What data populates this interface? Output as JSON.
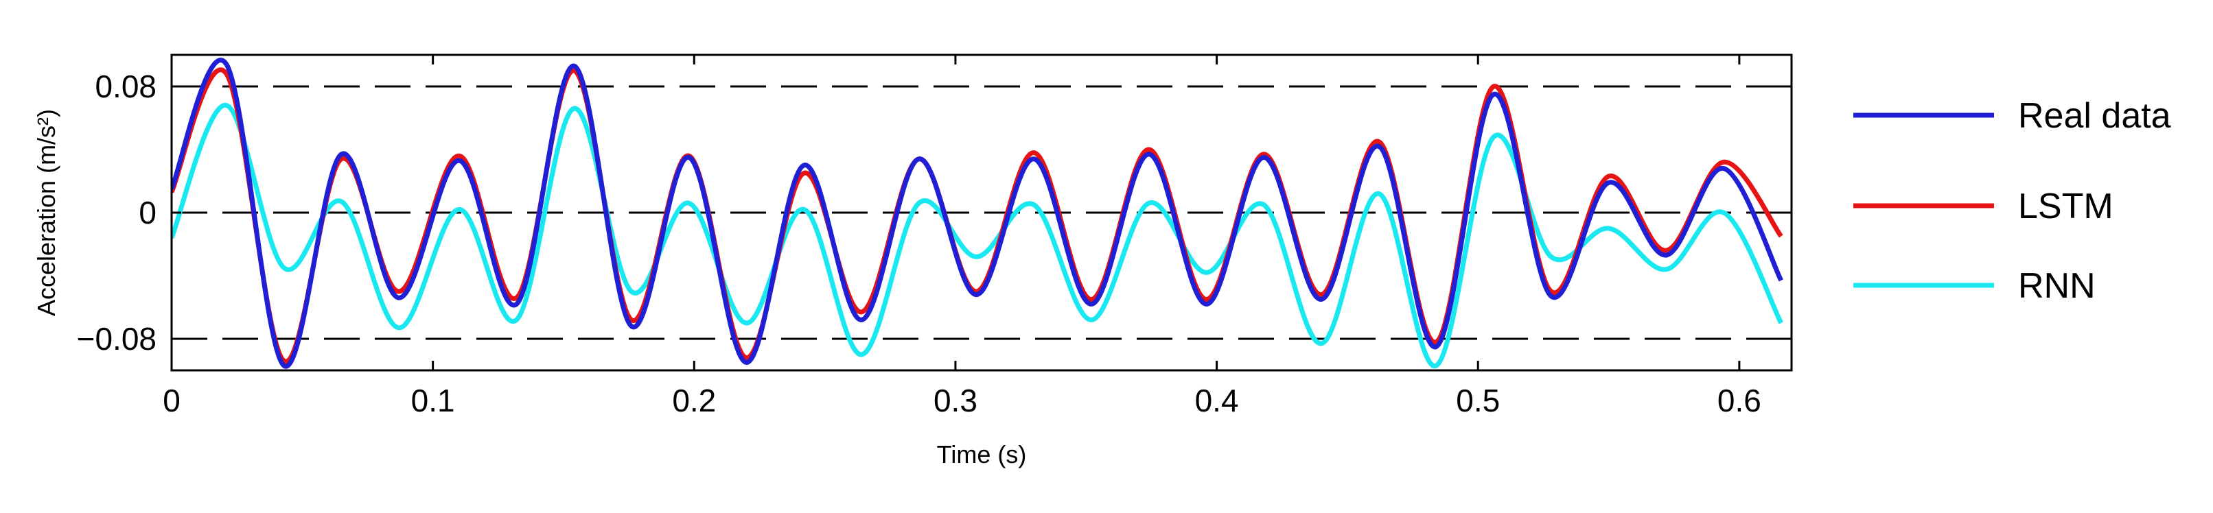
{
  "chart_data": {
    "type": "line",
    "xlabel": "Time (s)",
    "ylabel": "Acceleration (m/s²)",
    "xlim": [
      0,
      0.62
    ],
    "ylim": [
      -0.1,
      0.1
    ],
    "x_ticks": [
      0,
      0.1,
      0.2,
      0.3,
      0.4,
      0.5,
      0.6
    ],
    "x_tick_labels": [
      "0",
      "0.1",
      "0.2",
      "0.3",
      "0.4",
      "0.5",
      "0.6"
    ],
    "y_ticks": [
      -0.08,
      0,
      0.08
    ],
    "y_tick_labels": [
      "−0.08",
      "0",
      "0.08"
    ],
    "reference_lines": [
      -0.08,
      0,
      0.08
    ],
    "grid": false,
    "legend_position": "right",
    "colors": {
      "Real data": "#1f1fd6",
      "LSTM": "#e61414",
      "RNN": "#19e8f0"
    },
    "series": [
      {
        "name": "Real data",
        "x": [
          0,
          0.021,
          0.043,
          0.065,
          0.087,
          0.11,
          0.132,
          0.154,
          0.176,
          0.198,
          0.22,
          0.242,
          0.264,
          0.286,
          0.308,
          0.33,
          0.352,
          0.374,
          0.396,
          0.418,
          0.44,
          0.462,
          0.484,
          0.506,
          0.528,
          0.55,
          0.572,
          0.594,
          0.616
        ],
        "y": [
          0.015,
          0.094,
          -0.097,
          0.037,
          -0.054,
          0.033,
          -0.058,
          0.093,
          -0.072,
          0.035,
          -0.095,
          0.03,
          -0.068,
          0.034,
          -0.052,
          0.034,
          -0.058,
          0.037,
          -0.058,
          0.035,
          -0.055,
          0.042,
          -0.085,
          0.075,
          -0.053,
          0.019,
          -0.027,
          0.028,
          -0.043
        ]
      },
      {
        "name": "LSTM",
        "x": [
          0,
          0.021,
          0.043,
          0.065,
          0.087,
          0.11,
          0.132,
          0.154,
          0.176,
          0.198,
          0.22,
          0.242,
          0.264,
          0.286,
          0.308,
          0.33,
          0.352,
          0.374,
          0.396,
          0.418,
          0.44,
          0.462,
          0.484,
          0.506,
          0.528,
          0.55,
          0.572,
          0.594,
          0.616
        ],
        "y": [
          0.013,
          0.088,
          -0.094,
          0.034,
          -0.05,
          0.036,
          -0.054,
          0.09,
          -0.068,
          0.036,
          -0.092,
          0.025,
          -0.063,
          0.034,
          -0.05,
          0.038,
          -0.055,
          0.04,
          -0.055,
          0.037,
          -0.052,
          0.045,
          -0.082,
          0.08,
          -0.05,
          0.023,
          -0.024,
          0.032,
          -0.015
        ]
      },
      {
        "name": "RNN",
        "x": [
          0,
          0.021,
          0.043,
          0.065,
          0.087,
          0.11,
          0.132,
          0.154,
          0.176,
          0.198,
          0.22,
          0.242,
          0.264,
          0.286,
          0.308,
          0.33,
          0.352,
          0.374,
          0.396,
          0.418,
          0.44,
          0.462,
          0.484,
          0.506,
          0.528,
          0.55,
          0.572,
          0.594,
          0.616
        ],
        "y": [
          -0.016,
          0.068,
          -0.035,
          0.007,
          -0.073,
          0.002,
          -0.068,
          0.066,
          -0.05,
          0.006,
          -0.07,
          0.002,
          -0.09,
          0.006,
          -0.028,
          0.005,
          -0.068,
          0.006,
          -0.038,
          0.005,
          -0.083,
          0.012,
          -0.097,
          0.048,
          -0.028,
          -0.01,
          -0.036,
          0.0,
          -0.07
        ]
      }
    ]
  }
}
